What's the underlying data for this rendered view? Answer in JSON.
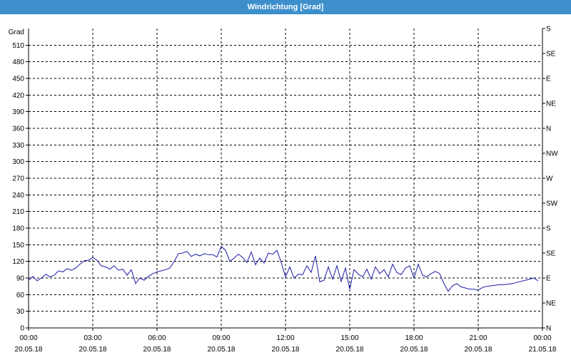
{
  "window": {
    "title": "Windrichtung [Grad]"
  },
  "chart_data": {
    "type": "line",
    "title": "Windrichtung [Grad]",
    "ylabel": "Grad",
    "ylim": [
      0,
      540
    ],
    "y_ticks": [
      0,
      30,
      60,
      90,
      120,
      150,
      180,
      210,
      240,
      270,
      300,
      330,
      360,
      390,
      420,
      450,
      480,
      510
    ],
    "x_ticks": [
      {
        "hour": 0,
        "time": "00:00",
        "date": "20.05.18"
      },
      {
        "hour": 3,
        "time": "03:00",
        "date": "20.05.18"
      },
      {
        "hour": 6,
        "time": "06:00",
        "date": "20.05.18"
      },
      {
        "hour": 9,
        "time": "09:00",
        "date": "20.05.18"
      },
      {
        "hour": 12,
        "time": "12:00",
        "date": "20.05.18"
      },
      {
        "hour": 15,
        "time": "15:00",
        "date": "20.05.18"
      },
      {
        "hour": 18,
        "time": "18:00",
        "date": "20.05.18"
      },
      {
        "hour": 21,
        "time": "21:00",
        "date": "20.05.18"
      },
      {
        "hour": 24,
        "time": "00:00",
        "date": "21.05.18"
      }
    ],
    "right_axis_labels": [
      {
        "value": 0,
        "label": "N"
      },
      {
        "value": 45,
        "label": "NE"
      },
      {
        "value": 90,
        "label": "E"
      },
      {
        "value": 135,
        "label": "SE"
      },
      {
        "value": 180,
        "label": "S"
      },
      {
        "value": 225,
        "label": "SW"
      },
      {
        "value": 270,
        "label": "W"
      },
      {
        "value": 315,
        "label": "NW"
      },
      {
        "value": 360,
        "label": "N"
      },
      {
        "value": 405,
        "label": "NE"
      },
      {
        "value": 450,
        "label": "E"
      },
      {
        "value": 495,
        "label": "SE"
      },
      {
        "value": 540,
        "label": "S"
      }
    ],
    "grid": true,
    "line_color": "#1a1aa6",
    "series": [
      {
        "x": [
          0.0,
          0.2,
          0.4,
          0.6,
          0.8,
          1.0,
          1.2,
          1.4,
          1.6,
          1.8,
          2.0,
          2.2,
          2.4,
          2.6,
          2.8,
          3.0,
          3.2,
          3.4,
          3.6,
          3.8,
          4.0,
          4.2,
          4.4,
          4.6,
          4.8,
          5.0,
          5.2,
          5.4,
          5.6,
          5.8,
          6.0,
          6.2,
          6.4,
          6.6,
          6.8,
          7.0,
          7.2,
          7.4,
          7.6,
          7.8,
          8.0,
          8.2,
          8.4,
          8.6,
          8.8,
          9.0,
          9.2,
          9.4,
          9.6,
          9.8,
          10.0,
          10.2,
          10.4,
          10.6,
          10.8,
          11.0,
          11.2,
          11.4,
          11.6,
          11.8,
          12.0,
          12.2,
          12.4,
          12.6,
          12.8,
          13.0,
          13.2,
          13.4,
          13.6,
          13.8,
          14.0,
          14.2,
          14.4,
          14.6,
          14.8,
          15.0,
          15.2,
          15.4,
          15.6,
          15.8,
          16.0,
          16.2,
          16.4,
          16.6,
          16.8,
          17.0,
          17.2,
          17.4,
          17.6,
          17.8,
          18.0,
          18.2,
          18.4,
          18.6,
          18.8,
          19.0,
          19.2,
          19.4,
          19.6,
          19.8,
          20.0,
          20.2,
          20.4,
          20.6,
          20.8,
          21.0,
          21.2,
          21.4,
          21.6,
          21.8,
          22.0,
          22.2,
          22.4,
          22.6,
          22.8,
          23.0,
          23.2,
          23.4,
          23.6,
          23.8
        ],
        "values": [
          86,
          93,
          85,
          90,
          97,
          92,
          95,
          103,
          101,
          107,
          104,
          108,
          115,
          121,
          122,
          127,
          122,
          112,
          110,
          106,
          112,
          104,
          106,
          95,
          105,
          80,
          90,
          86,
          93,
          98,
          101,
          103,
          105,
          108,
          120,
          134,
          135,
          138,
          129,
          133,
          130,
          134,
          132,
          132,
          128,
          147,
          140,
          120,
          126,
          133,
          127,
          118,
          137,
          114,
          126,
          117,
          135,
          133,
          140,
          118,
          92,
          110,
          90,
          97,
          96,
          112,
          100,
          130,
          83,
          86,
          110,
          88,
          112,
          84,
          108,
          70,
          105,
          97,
          92,
          106,
          88,
          110,
          98,
          105,
          92,
          115,
          100,
          96,
          108,
          112,
          90,
          115,
          95,
          92,
          98,
          102,
          98,
          80,
          66,
          76,
          80,
          74,
          72,
          70,
          70,
          68,
          73,
          75,
          76,
          77,
          78,
          78,
          79,
          80,
          82,
          84,
          86,
          88,
          90,
          85
        ]
      }
    ]
  }
}
